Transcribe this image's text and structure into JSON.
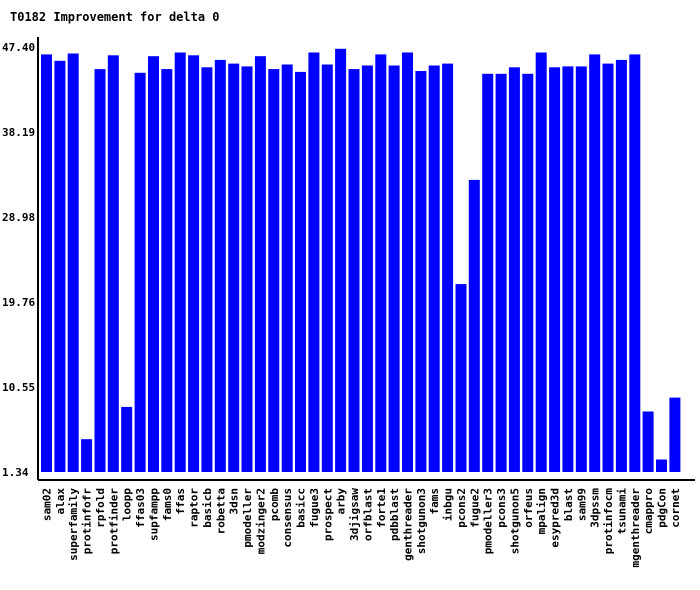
{
  "chart_data": {
    "type": "bar",
    "title": "T0182 Improvement for delta 0",
    "xlabel": "",
    "ylabel": "",
    "ylim": [
      1.34,
      47.4
    ],
    "yticks": [
      "1.34",
      "10.55",
      "19.76",
      "28.98",
      "38.19",
      "47.40"
    ],
    "bar_color": "#0000ff",
    "categories": [
      "sam02",
      "alax",
      "superfamily",
      "protinfofr",
      "rpfold",
      "protfinder",
      "loopp",
      "ffas03",
      "supfampp",
      "fams0",
      "ffas",
      "raptor",
      "basicb",
      "robetta",
      "3dsn",
      "pmodeller",
      "modzinger2",
      "pcomb",
      "consensus",
      "basicc",
      "fugue3",
      "prospect",
      "arby",
      "3djigsaw",
      "orfblast",
      "forte1",
      "pdbblast",
      "genthreader",
      "shotgunon3",
      "fams",
      "inbgu",
      "pcons2",
      "fugue2",
      "pmodeller3",
      "pcons3",
      "shotgunon5",
      "orfeus",
      "mpalign",
      "esypred3d",
      "blast",
      "sam99",
      "3dpssm",
      "protinfocm",
      "tsunami",
      "mgenthreader",
      "cmappro",
      "pdgCon",
      "cornet"
    ],
    "values": [
      46.6,
      45.9,
      46.7,
      4.9,
      45.0,
      46.5,
      8.4,
      44.6,
      46.4,
      45.0,
      46.8,
      46.5,
      45.2,
      46.0,
      45.6,
      45.3,
      46.4,
      45.0,
      45.5,
      44.7,
      46.8,
      45.5,
      47.2,
      45.0,
      45.4,
      46.6,
      45.4,
      46.8,
      44.8,
      45.4,
      45.6,
      21.7,
      33.0,
      44.5,
      44.5,
      45.2,
      44.5,
      46.8,
      45.2,
      45.3,
      45.3,
      46.6,
      45.6,
      46.0,
      46.6,
      7.9,
      2.7,
      9.4
    ]
  }
}
